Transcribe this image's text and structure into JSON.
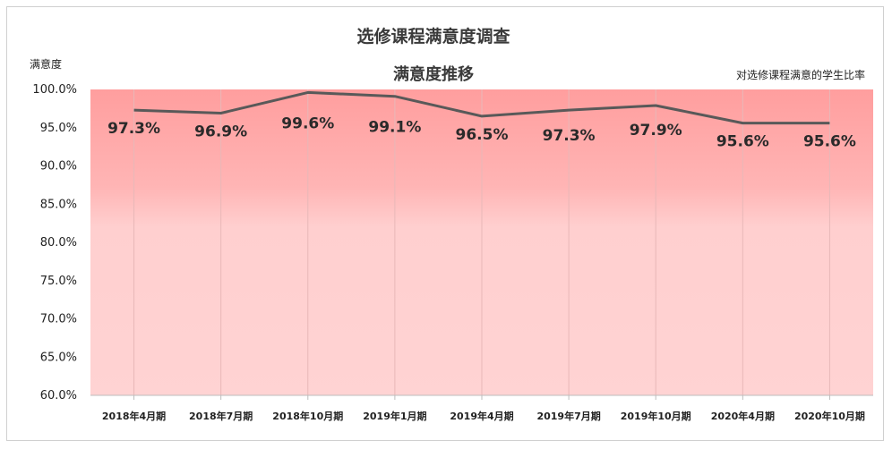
{
  "chart_data": {
    "type": "line",
    "title": "选修课程满意度调查",
    "subtitle": "满意度推移",
    "ylabel": "满意度",
    "annotation": "对选修课程满意的学生比率",
    "categories": [
      "2018年4月期",
      "2018年7月期",
      "2018年10月期",
      "2019年1月期",
      "2019年4月期",
      "2019年7月期",
      "2019年10月期",
      "2020年4月期",
      "2020年10月期"
    ],
    "series": [
      {
        "values": [
          97.3,
          96.9,
          99.6,
          99.1,
          96.5,
          97.3,
          97.9,
          95.6,
          95.6
        ],
        "color": "#595959"
      }
    ],
    "data_labels": [
      "97.3%",
      "96.9%",
      "99.6%",
      "99.1%",
      "96.5%",
      "97.3%",
      "97.9%",
      "95.6%",
      "95.6%"
    ],
    "yticks": [
      "60.0%",
      "65.0%",
      "70.0%",
      "75.0%",
      "80.0%",
      "85.0%",
      "90.0%",
      "95.0%",
      "100.0%"
    ],
    "ylim": [
      60,
      100
    ],
    "grid": "vertical",
    "background_gradient": [
      "#ff9e9e",
      "#ffd2d2"
    ]
  }
}
